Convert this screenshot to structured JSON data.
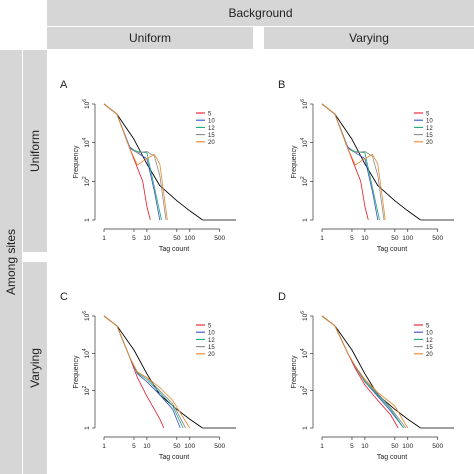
{
  "header": {
    "top_title": "Background",
    "col_uniform": "Uniform",
    "col_varying": "Varying",
    "side_title": "Among sites",
    "row_uniform": "Uniform",
    "row_varying": "Varying"
  },
  "colors": {
    "strip": "#d6d6d6",
    "black": "#000000",
    "s5": "#e8192c",
    "s10": "#3b4fc4",
    "s12": "#18a878",
    "s15": "#8a8a8a",
    "s20": "#e8862a"
  },
  "chart_data": [
    {
      "panel": "A",
      "type": "line",
      "xlabel": "Tag count",
      "ylabel": "Frequency",
      "xscale": "log",
      "yscale": "log",
      "xticks": [
        "1",
        "5",
        "10",
        "50",
        "100",
        "500"
      ],
      "yticks": [
        "1",
        "10^2",
        "10^4",
        "10^6"
      ],
      "legend": [
        "5",
        "10",
        "12",
        "15",
        "20"
      ],
      "legend_position": "top-right",
      "series": [
        {
          "name": "",
          "color": "black",
          "x": [
            1,
            2,
            5,
            10,
            20,
            50,
            100,
            200
          ],
          "y": [
            1000000,
            300000,
            15000,
            800,
            60,
            10,
            3,
            1
          ]
        },
        {
          "name": "5",
          "color": "s5",
          "x": [
            1,
            2,
            4,
            6,
            8,
            10,
            12
          ],
          "y": [
            1000000,
            300000,
            5000,
            500,
            100,
            5,
            1
          ]
        },
        {
          "name": "10",
          "color": "s10",
          "x": [
            1,
            2,
            4,
            6,
            10,
            15,
            20
          ],
          "y": [
            1000000,
            300000,
            6000,
            3000,
            1500,
            30,
            1
          ]
        },
        {
          "name": "12",
          "color": "s12",
          "x": [
            1,
            2,
            4,
            6,
            10,
            15,
            22
          ],
          "y": [
            1000000,
            300000,
            5000,
            3500,
            3000,
            50,
            1
          ]
        },
        {
          "name": "15",
          "color": "s15",
          "x": [
            1,
            2,
            4,
            6,
            10,
            15,
            20,
            28
          ],
          "y": [
            1000000,
            300000,
            5000,
            3000,
            3500,
            2000,
            200,
            1
          ]
        },
        {
          "name": "20",
          "color": "s20",
          "x": [
            1,
            2,
            4,
            6,
            10,
            15,
            20,
            30
          ],
          "y": [
            1000000,
            300000,
            5000,
            700,
            1500,
            2500,
            800,
            1
          ]
        }
      ]
    },
    {
      "panel": "B",
      "type": "line",
      "xlabel": "Tag count",
      "ylabel": "Frequency",
      "xscale": "log",
      "yscale": "log",
      "xticks": [
        "1",
        "5",
        "10",
        "50",
        "100",
        "500"
      ],
      "yticks": [
        "1",
        "10^2",
        "10^4",
        "10^6"
      ],
      "legend": [
        "5",
        "10",
        "12",
        "15",
        "20"
      ],
      "legend_position": "top-right",
      "series": [
        {
          "name": "",
          "color": "black",
          "x": [
            1,
            2,
            5,
            10,
            20,
            50,
            100,
            200
          ],
          "y": [
            1000000,
            300000,
            15000,
            800,
            60,
            10,
            3,
            1
          ]
        },
        {
          "name": "5",
          "color": "s5",
          "x": [
            1,
            2,
            4,
            6,
            8,
            10,
            12
          ],
          "y": [
            1000000,
            300000,
            5000,
            500,
            100,
            5,
            1
          ]
        },
        {
          "name": "10",
          "color": "s10",
          "x": [
            1,
            2,
            4,
            6,
            10,
            15,
            20
          ],
          "y": [
            1000000,
            300000,
            6000,
            3000,
            1500,
            30,
            1
          ]
        },
        {
          "name": "12",
          "color": "s12",
          "x": [
            1,
            2,
            4,
            6,
            10,
            15,
            22
          ],
          "y": [
            1000000,
            300000,
            5000,
            3500,
            3000,
            50,
            1
          ]
        },
        {
          "name": "15",
          "color": "s15",
          "x": [
            1,
            2,
            4,
            6,
            10,
            15,
            20,
            28
          ],
          "y": [
            1000000,
            300000,
            5000,
            3000,
            3500,
            2000,
            200,
            1
          ]
        },
        {
          "name": "20",
          "color": "s20",
          "x": [
            1,
            2,
            4,
            6,
            10,
            15,
            20,
            30
          ],
          "y": [
            1000000,
            300000,
            5000,
            700,
            1500,
            2500,
            800,
            1
          ]
        }
      ]
    },
    {
      "panel": "C",
      "type": "line",
      "xlabel": "Tag count",
      "ylabel": "Frequency",
      "xscale": "log",
      "yscale": "log",
      "xticks": [
        "1",
        "5",
        "10",
        "50",
        "100",
        "500"
      ],
      "yticks": [
        "1",
        "10^2",
        "10^4",
        "10^6"
      ],
      "legend": [
        "5",
        "10",
        "12",
        "15",
        "20"
      ],
      "legend_position": "top-right",
      "series": [
        {
          "name": "",
          "color": "black",
          "x": [
            1,
            2,
            5,
            10,
            20,
            50,
            100,
            200
          ],
          "y": [
            1000000,
            300000,
            15000,
            800,
            60,
            10,
            3,
            1
          ]
        },
        {
          "name": "5",
          "color": "s5",
          "x": [
            1,
            2,
            4,
            6,
            10,
            15,
            20,
            25
          ],
          "y": [
            1000000,
            300000,
            6000,
            500,
            50,
            10,
            3,
            1
          ]
        },
        {
          "name": "10",
          "color": "s10",
          "x": [
            1,
            2,
            4,
            6,
            10,
            20,
            40,
            60
          ],
          "y": [
            1000000,
            300000,
            6000,
            800,
            300,
            60,
            10,
            1
          ]
        },
        {
          "name": "12",
          "color": "s12",
          "x": [
            1,
            2,
            4,
            6,
            10,
            20,
            40,
            70
          ],
          "y": [
            1000000,
            300000,
            6000,
            900,
            400,
            80,
            15,
            1
          ]
        },
        {
          "name": "15",
          "color": "s15",
          "x": [
            1,
            2,
            4,
            6,
            10,
            20,
            40,
            80
          ],
          "y": [
            1000000,
            300000,
            6000,
            1000,
            500,
            100,
            20,
            1
          ]
        },
        {
          "name": "20",
          "color": "s20",
          "x": [
            1,
            2,
            4,
            6,
            10,
            20,
            40,
            100
          ],
          "y": [
            1000000,
            300000,
            6000,
            1000,
            500,
            150,
            30,
            1
          ]
        }
      ]
    },
    {
      "panel": "D",
      "type": "line",
      "xlabel": "Tag count",
      "ylabel": "Frequency",
      "xscale": "log",
      "yscale": "log",
      "xticks": [
        "1",
        "5",
        "10",
        "50",
        "100",
        "500"
      ],
      "yticks": [
        "1",
        "10^2",
        "10^4",
        "10^6"
      ],
      "legend": [
        "5",
        "10",
        "12",
        "15",
        "20"
      ],
      "legend_position": "top-right",
      "series": [
        {
          "name": "",
          "color": "black",
          "x": [
            1,
            2,
            5,
            10,
            20,
            50,
            100,
            200
          ],
          "y": [
            1000000,
            300000,
            15000,
            800,
            60,
            10,
            3,
            1
          ]
        },
        {
          "name": "5",
          "color": "s5",
          "x": [
            1,
            2,
            4,
            6,
            10,
            20,
            40,
            60
          ],
          "y": [
            1000000,
            300000,
            10000,
            1500,
            200,
            30,
            5,
            1
          ]
        },
        {
          "name": "10",
          "color": "s10",
          "x": [
            1,
            2,
            4,
            6,
            10,
            20,
            40,
            80
          ],
          "y": [
            1000000,
            300000,
            10000,
            1800,
            300,
            50,
            8,
            1
          ]
        },
        {
          "name": "12",
          "color": "s12",
          "x": [
            1,
            2,
            4,
            6,
            10,
            20,
            40,
            80
          ],
          "y": [
            1000000,
            300000,
            10000,
            2000,
            300,
            60,
            10,
            1
          ]
        },
        {
          "name": "15",
          "color": "s15",
          "x": [
            1,
            2,
            4,
            6,
            10,
            20,
            40,
            90
          ],
          "y": [
            1000000,
            300000,
            10000,
            2000,
            350,
            70,
            12,
            1
          ]
        },
        {
          "name": "20",
          "color": "s20",
          "x": [
            1,
            2,
            4,
            6,
            10,
            20,
            50,
            100
          ],
          "y": [
            1000000,
            300000,
            10000,
            2000,
            400,
            80,
            15,
            1
          ]
        }
      ]
    }
  ]
}
